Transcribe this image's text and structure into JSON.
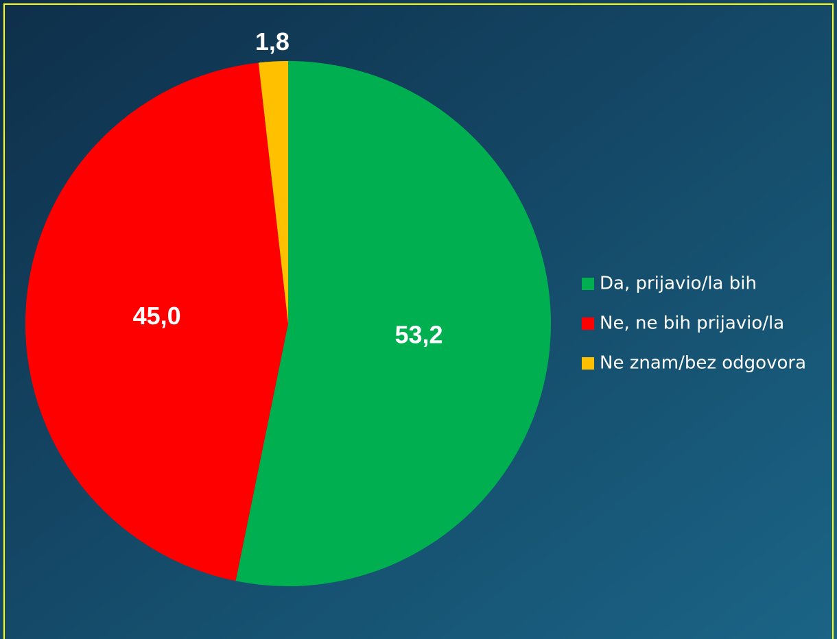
{
  "chart_data": {
    "type": "pie",
    "categories": [
      "Da, prijavio/la bih",
      "Ne, ne bih prijavio/la",
      "Ne znam/bez odgovora"
    ],
    "values": [
      53.2,
      45.0,
      1.8
    ],
    "value_labels": [
      "53,2",
      "45,0",
      "1,8"
    ],
    "colors": [
      "#00b050",
      "#ff0000",
      "#ffc000"
    ],
    "legend": "right"
  }
}
